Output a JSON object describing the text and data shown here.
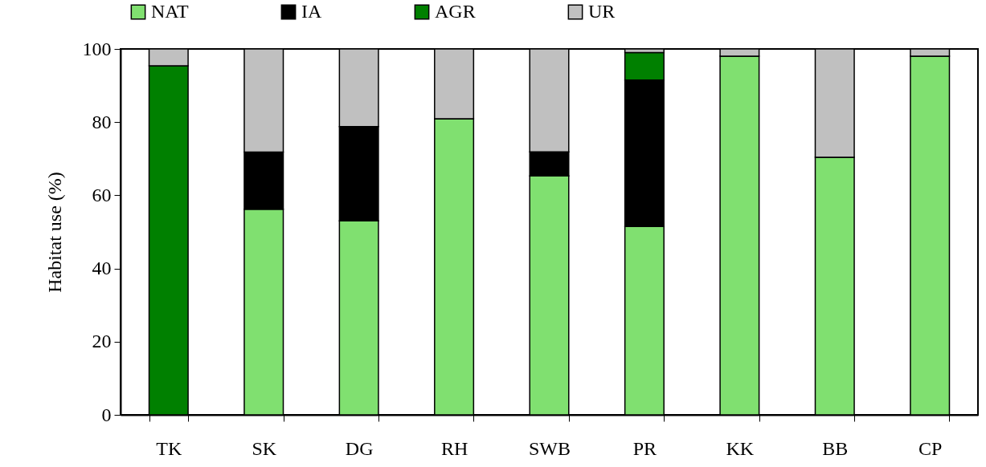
{
  "chart_data": {
    "type": "bar",
    "stacked": true,
    "ylabel": "Habitat use (%)",
    "categories": [
      "TK",
      "SK",
      "DG",
      "RH",
      "SWB",
      "PR",
      "KK",
      "BB",
      "CP"
    ],
    "series": [
      {
        "name": "NAT",
        "color": "#80e070",
        "values": [
          0,
          56.2,
          53.0,
          80.9,
          65.3,
          51.5,
          98.0,
          70.4,
          98.0
        ]
      },
      {
        "name": "IA",
        "color": "#000000",
        "values": [
          0,
          15.6,
          25.8,
          0,
          6.6,
          40.0,
          0,
          0,
          0
        ]
      },
      {
        "name": "AGR",
        "color": "#008000",
        "values": [
          95.4,
          0,
          0,
          0,
          0,
          7.5,
          0,
          0,
          0
        ]
      },
      {
        "name": "UR",
        "color": "#c0c0c0",
        "values": [
          4.6,
          28.2,
          21.2,
          19.1,
          28.1,
          1.0,
          2.0,
          29.6,
          2.0
        ]
      }
    ],
    "ylim": [
      0,
      100
    ],
    "yticks": [
      0,
      20,
      40,
      60,
      80,
      100
    ],
    "grid": false,
    "legend": "top"
  }
}
